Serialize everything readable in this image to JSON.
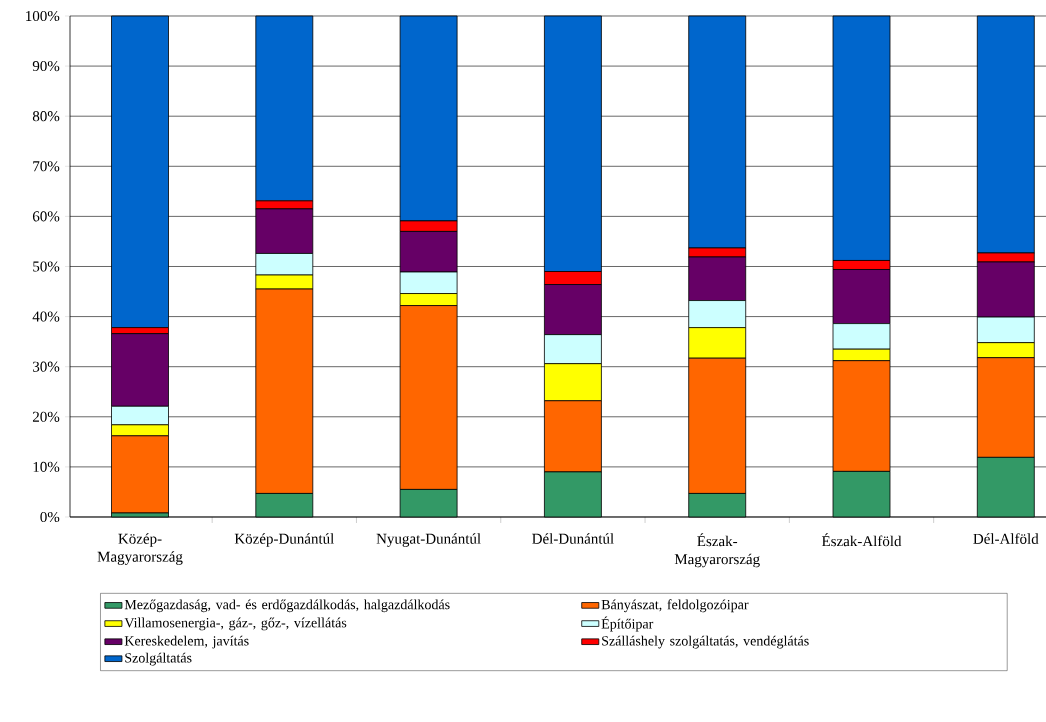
{
  "chart_data": {
    "type": "bar",
    "stacked": true,
    "grid": "y",
    "legend": "bottom",
    "categories": [
      "Közép-Magyarország",
      "Közép-Dunántúl",
      "Nyugat-Dunántúl",
      "Dél-Dunántúl",
      "Észak-Magyarország",
      "Észak-Alföld",
      "Dél-Alföld"
    ],
    "ylim": [
      0,
      100
    ],
    "yticks": [
      {
        "value": 0,
        "label": "0%"
      },
      {
        "value": 10,
        "label": "10%"
      },
      {
        "value": 20,
        "label": "20%"
      },
      {
        "value": 30,
        "label": "30%"
      },
      {
        "value": 40,
        "label": "40%"
      },
      {
        "value": 50,
        "label": "50%"
      },
      {
        "value": 60,
        "label": "60%"
      },
      {
        "value": 70,
        "label": "70%"
      },
      {
        "value": 80,
        "label": "80%"
      },
      {
        "value": 90,
        "label": "90%"
      },
      {
        "value": 100,
        "label": "100%"
      }
    ],
    "series": [
      {
        "name": "Mezőgazdaság, vad- és erdőgazdálkodás, halgazdálkodás",
        "color": "#339966",
        "values": [
          0.8,
          4.7,
          5.5,
          9.0,
          4.7,
          9.1,
          11.9
        ]
      },
      {
        "name": "Bányászat, feldolgozóipar",
        "color": "#ff6600",
        "values": [
          15.4,
          40.8,
          36.7,
          14.2,
          27.0,
          22.1,
          19.9
        ]
      },
      {
        "name": "Villamosenergia-, gáz-, gőz-, vízellátás",
        "color": "#ffff00",
        "values": [
          2.2,
          2.8,
          2.4,
          7.4,
          6.1,
          2.3,
          3.0
        ]
      },
      {
        "name": "Építőipar",
        "color": "#ccffff",
        "values": [
          3.7,
          4.3,
          4.3,
          5.8,
          5.4,
          5.1,
          5.1
        ]
      },
      {
        "name": "Kereskedelem, javítás",
        "color": "#660066",
        "values": [
          14.5,
          8.9,
          8.1,
          10.0,
          8.7,
          10.8,
          11.0
        ]
      },
      {
        "name": "Szálláshely szolgáltatás, vendéglátás",
        "color": "#ff0000",
        "values": [
          1.2,
          1.6,
          2.1,
          2.6,
          1.8,
          1.8,
          1.8
        ]
      },
      {
        "name": "Szolgáltatás",
        "color": "#0066cc",
        "values": [
          62.2,
          36.9,
          40.9,
          51.0,
          46.3,
          48.8,
          47.3
        ]
      }
    ]
  }
}
